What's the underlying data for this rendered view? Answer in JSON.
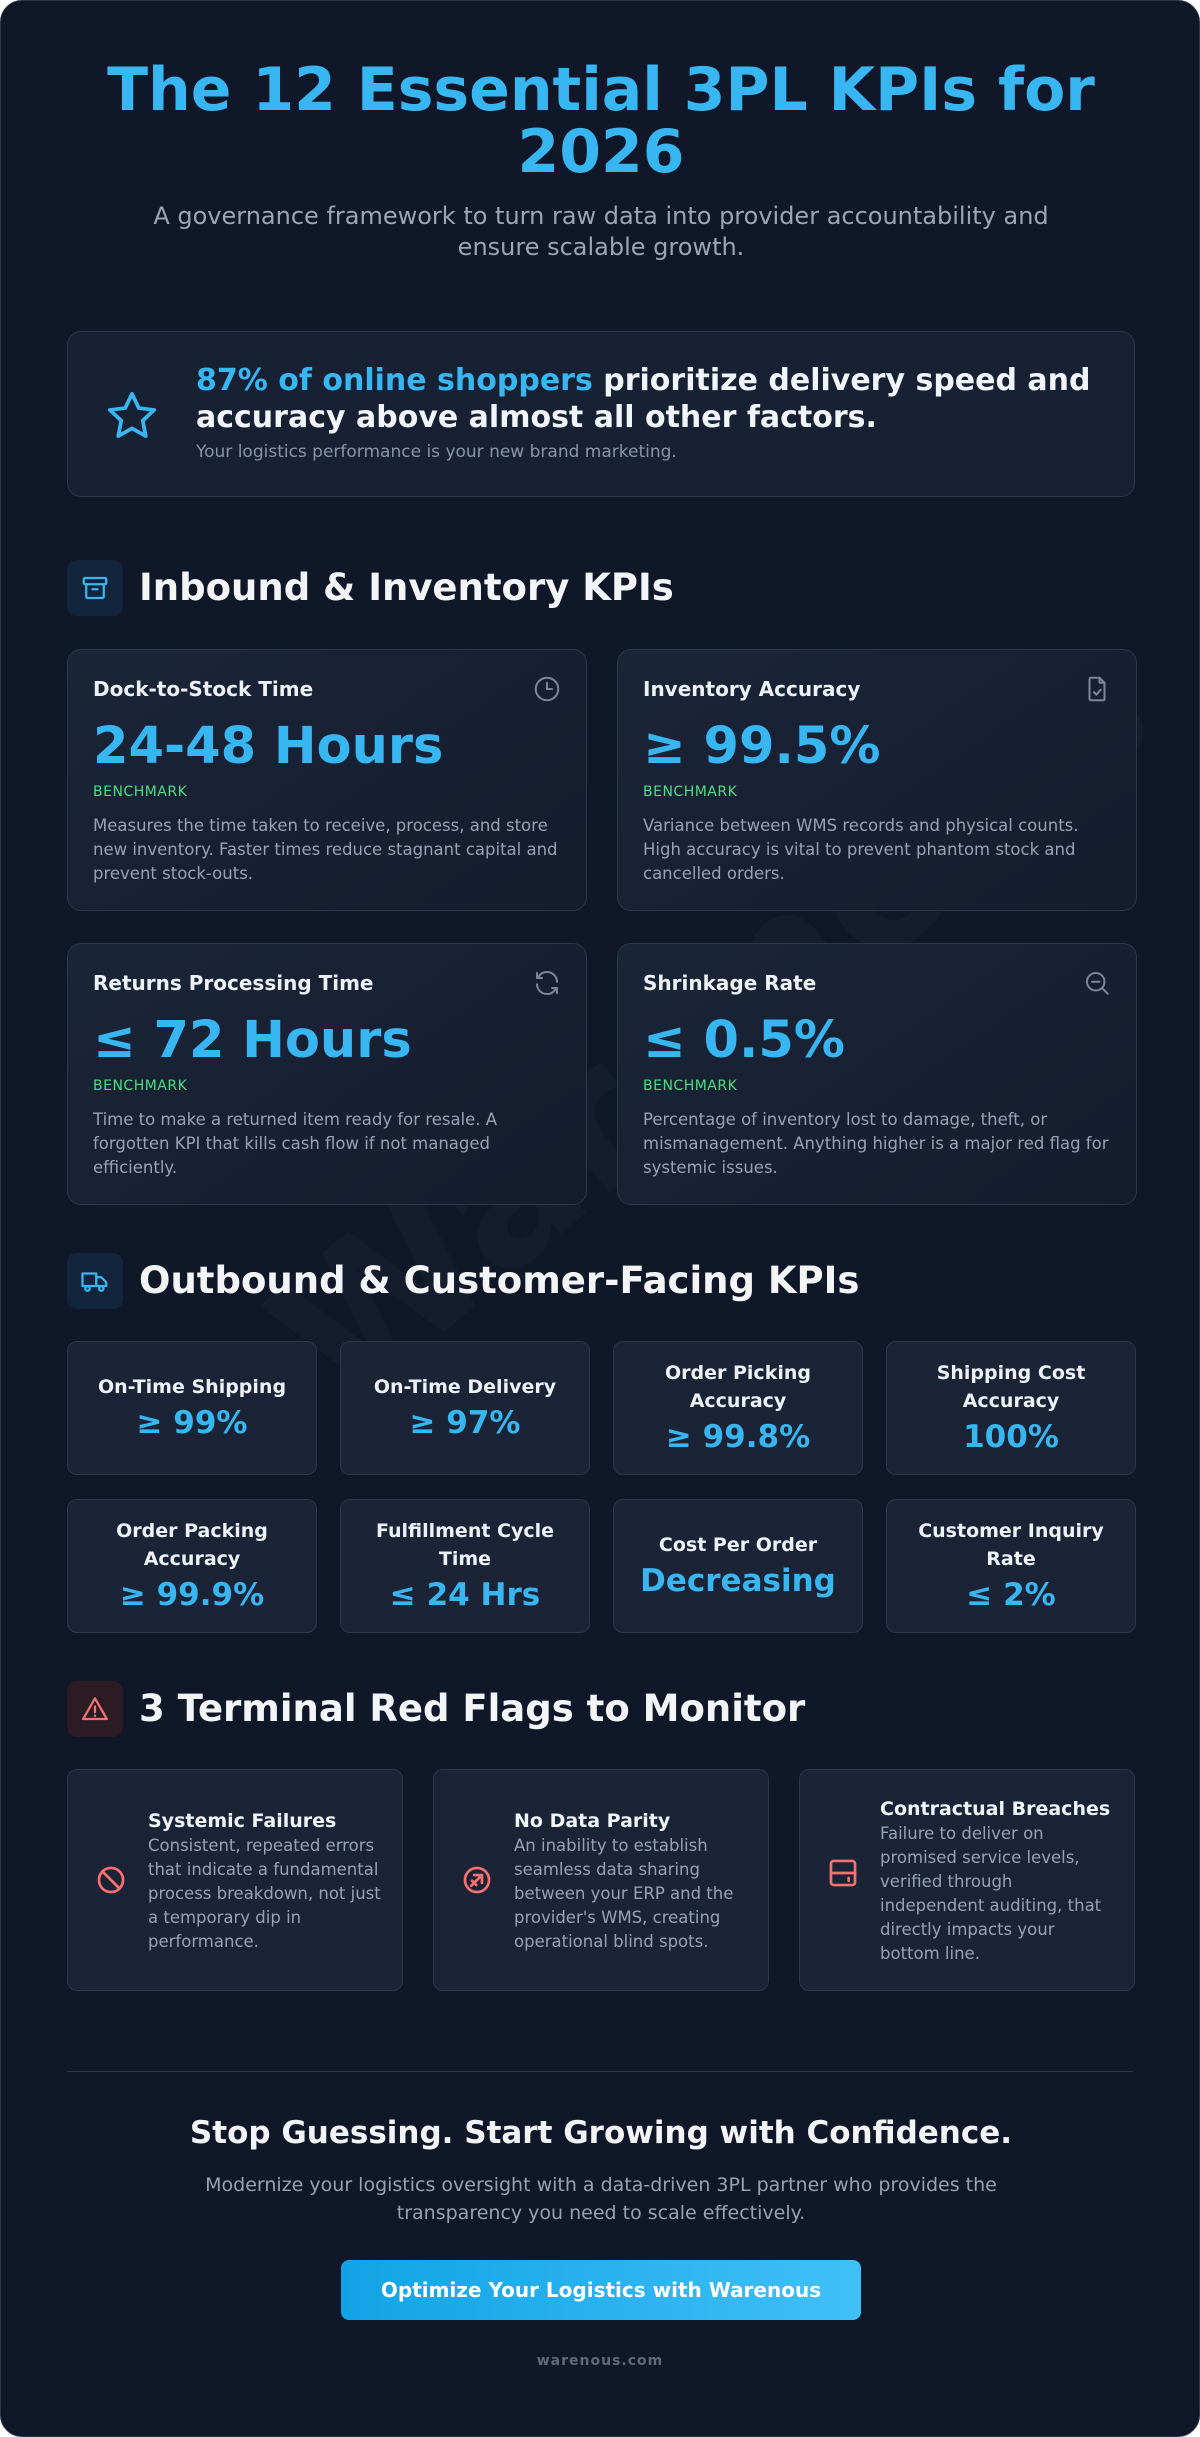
{
  "header": {
    "title": "The 12 Essential 3PL KPIs for 2026",
    "subtitle": "A governance framework to turn raw data into provider accountability and ensure scalable growth."
  },
  "hero": {
    "stat_highlight": "87% of online shoppers",
    "stat_rest": " prioritize delivery speed and accuracy above almost all other factors.",
    "note": "Your logistics performance is your new brand marketing.",
    "icon": "star-icon"
  },
  "watermark": "Warenous",
  "inbound": {
    "title": "Inbound & Inventory KPIs",
    "icon": "archive-box-icon",
    "cards": [
      {
        "name": "Dock-to-Stock Time",
        "value": "24-48 Hours",
        "benchmark": "BENCHMARK",
        "description": "Measures the time taken to receive, process, and store new inventory. Faster times reduce stagnant capital and prevent stock-outs.",
        "icon": "clock-icon"
      },
      {
        "name": "Inventory Accuracy",
        "value": "≥ 99.5%",
        "benchmark": "BENCHMARK",
        "description": "Variance between WMS records and physical counts. High accuracy is vital to prevent phantom stock and cancelled orders.",
        "icon": "file-check-icon"
      },
      {
        "name": "Returns Processing Time",
        "value": "≤ 72 Hours",
        "benchmark": "BENCHMARK",
        "description": "Time to make a returned item ready for resale. A forgotten KPI that kills cash flow if not managed efficiently.",
        "icon": "refresh-icon"
      },
      {
        "name": "Shrinkage Rate",
        "value": "≤ 0.5%",
        "benchmark": "BENCHMARK",
        "description": "Percentage of inventory lost to damage, theft, or mismanagement. Anything higher is a major red flag for systemic issues.",
        "icon": "zoom-out-icon"
      }
    ]
  },
  "outbound": {
    "title": "Outbound & Customer-Facing KPIs",
    "icon": "truck-icon",
    "cards": [
      {
        "name": "On-Time Shipping",
        "value": "≥ 99%"
      },
      {
        "name": "On-Time Delivery",
        "value": "≥ 97%"
      },
      {
        "name": "Order Picking Accuracy",
        "value": "≥ 99.8%"
      },
      {
        "name": "Shipping Cost Accuracy",
        "value": "100%"
      },
      {
        "name": "Order Packing Accuracy",
        "value": "≥ 99.9%"
      },
      {
        "name": "Fulfillment Cycle Time",
        "value": "≤ 24 Hrs"
      },
      {
        "name": "Cost Per Order",
        "value": "Decreasing"
      },
      {
        "name": "Customer Inquiry Rate",
        "value": "≤ 2%"
      }
    ]
  },
  "red_flags": {
    "title": "3 Terminal Red Flags to Monitor",
    "icon": "warning-triangle-icon",
    "accent_color": "#f87171",
    "items": [
      {
        "title": "Systemic Failures",
        "description": "Consistent, repeated errors that indicate a fundamental process breakdown, not just a temporary dip in performance.",
        "icon": "ban-icon"
      },
      {
        "title": "No Data Parity",
        "description": "An inability to establish seamless data sharing between your ERP and the provider's WMS, creating operational blind spots.",
        "icon": "broken-link-icon"
      },
      {
        "title": "Contractual Breaches",
        "description": "Failure to deliver on promised service levels, verified through independent auditing, that directly impacts your bottom line.",
        "icon": "server-icon"
      }
    ]
  },
  "cta": {
    "title": "Stop Guessing. Start Growing with Confidence.",
    "subtitle": "Modernize your logistics oversight with a data-driven 3PL partner who provides the transparency you need to scale effectively.",
    "button_label": "Optimize Your Logistics with Warenous"
  },
  "footer": {
    "text": "warenous.com"
  },
  "colors": {
    "background": "#0f1728",
    "accent": "#38b6f2",
    "benchmark": "#4ade80",
    "card": "#1a2436",
    "danger": "#f87171"
  }
}
